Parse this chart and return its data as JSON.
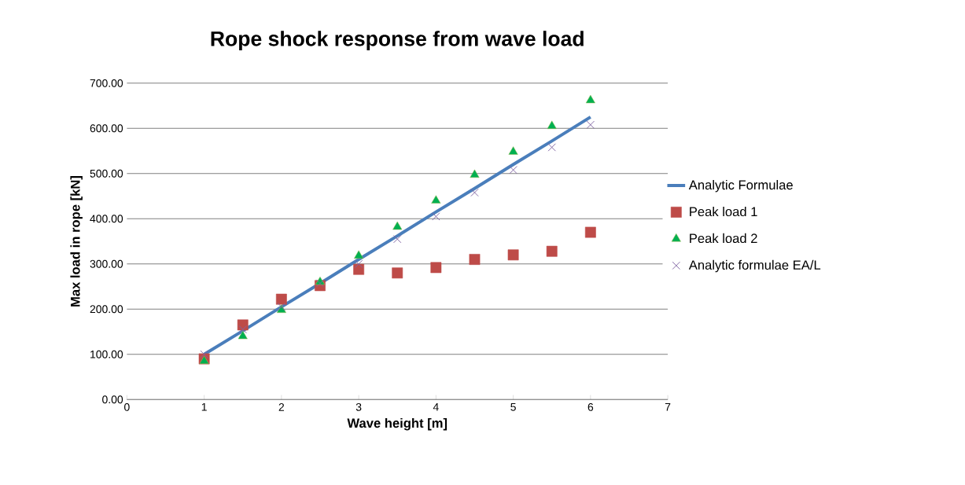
{
  "chart_data": {
    "type": "scatter",
    "title": "Rope shock response from wave load",
    "xlabel": "Wave height [m]",
    "ylabel": "Max load in rope [kN]",
    "x": [
      1,
      1.5,
      2,
      2.5,
      3,
      3.5,
      4,
      4.5,
      5,
      5.5,
      6
    ],
    "series": [
      {
        "name": "Analytic Formulae",
        "type": "line",
        "color": "#4a7ebb",
        "marker": "none",
        "line_style": "solid",
        "values": [
          100,
          152,
          205,
          257,
          310,
          362,
          415,
          467,
          520,
          572,
          625
        ]
      },
      {
        "name": "Peak load 1",
        "color": "#be4b48",
        "marker": "square",
        "values": [
          90,
          165,
          222,
          252,
          288,
          280,
          292,
          310,
          320,
          328,
          370
        ]
      },
      {
        "name": "Peak load 2",
        "color": "#00b050",
        "marker": "triangle",
        "values": [
          85,
          140,
          198,
          260,
          318,
          382,
          440,
          497,
          548,
          605,
          662
        ]
      },
      {
        "name": "Analytic formulae EA/L",
        "color": "#7f63a2",
        "marker": "cross",
        "values": [
          100,
          155,
          205,
          257,
          300,
          355,
          405,
          458,
          508,
          558,
          608
        ]
      }
    ],
    "xlim": [
      0,
      7
    ],
    "xticks": [
      0,
      1,
      2,
      3,
      4,
      5,
      6,
      7
    ],
    "ylim": [
      0,
      700
    ],
    "yticks": [
      {
        "value": 0,
        "label": "0.00"
      },
      {
        "value": 100,
        "label": "100.00"
      },
      {
        "value": 200,
        "label": "200.00"
      },
      {
        "value": 300,
        "label": "300.00"
      },
      {
        "value": 400,
        "label": "400.00"
      },
      {
        "value": 500,
        "label": "500.00"
      },
      {
        "value": 600,
        "label": "600.00"
      },
      {
        "value": 700,
        "label": "700.00"
      }
    ],
    "grid": "y",
    "legend": "right"
  }
}
